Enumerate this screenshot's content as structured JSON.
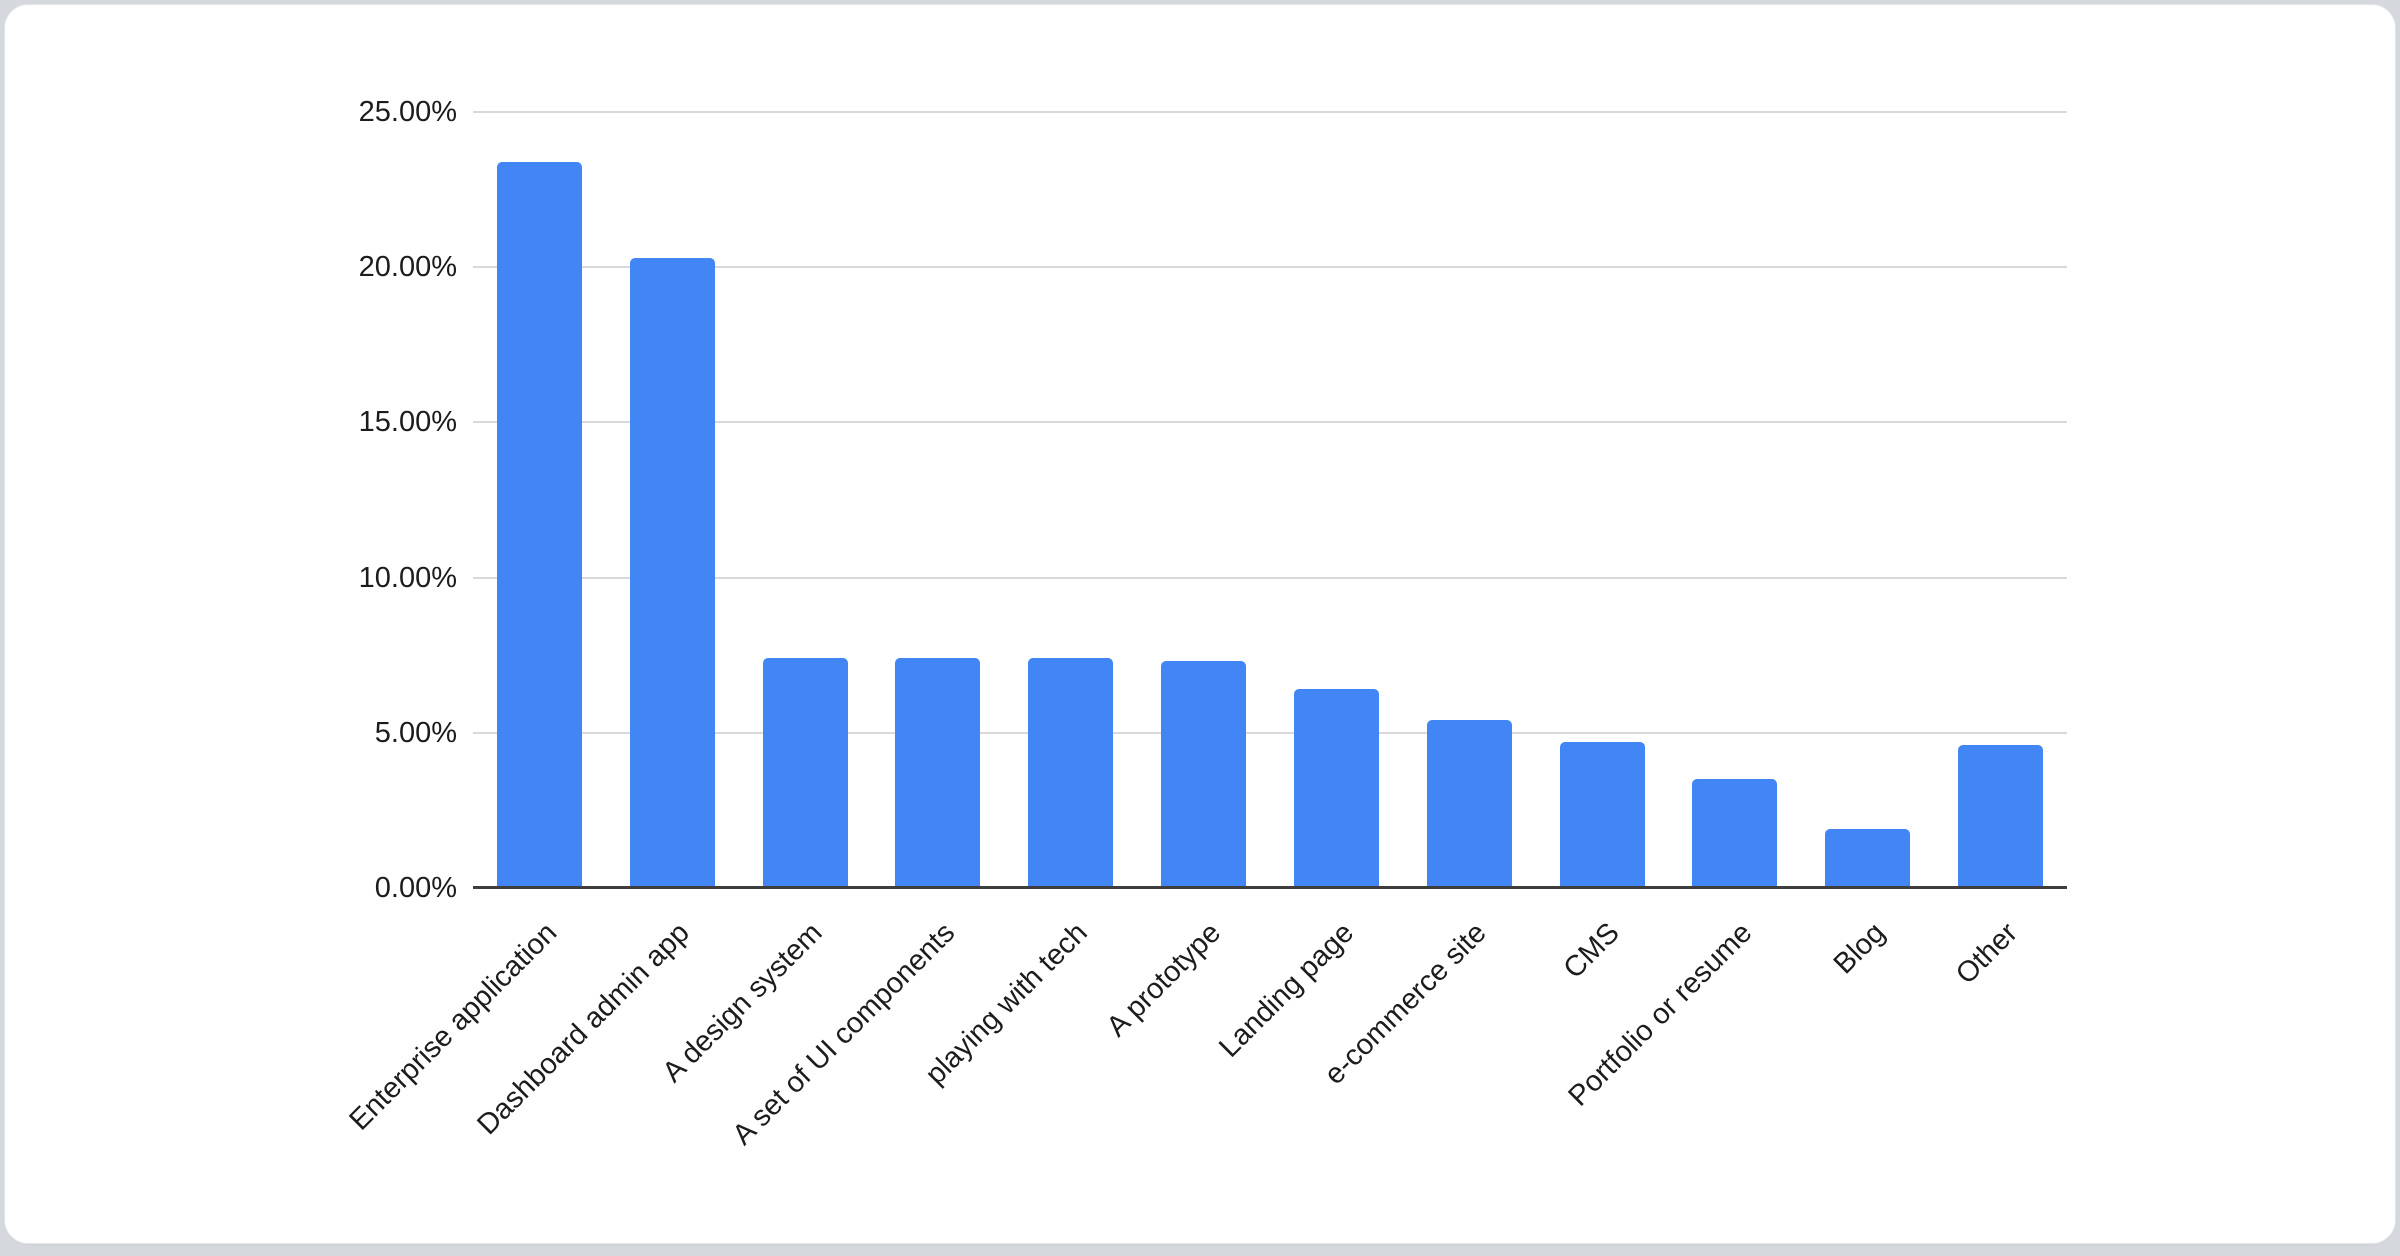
{
  "page": {
    "background_color": "#d5d9dd"
  },
  "card": {
    "background_color": "#ffffff",
    "border_color": "#e3e6e9"
  },
  "chart_data": {
    "type": "bar",
    "title": "",
    "xlabel": "",
    "ylabel": "",
    "legend": "none",
    "grid": true,
    "categories": [
      "Enterprise application",
      "Dashboard admin app",
      "A design system",
      "A set of UI components",
      "playing with tech",
      "A prototype",
      "Landing page",
      "e-commerce site",
      "CMS",
      "Portfolio or resume",
      "Blog",
      "Other"
    ],
    "values": [
      23.4,
      20.3,
      7.4,
      7.4,
      7.4,
      7.3,
      6.4,
      5.4,
      4.7,
      3.5,
      1.9,
      4.6
    ],
    "value_unit": "%",
    "ylim": [
      0,
      25
    ],
    "y_ticks": [
      {
        "value": 0,
        "label": "0.00%"
      },
      {
        "value": 5,
        "label": "5.00%"
      },
      {
        "value": 10,
        "label": "10.00%"
      },
      {
        "value": 15,
        "label": "15.00%"
      },
      {
        "value": 20,
        "label": "20.00%"
      },
      {
        "value": 25,
        "label": "25.00%"
      }
    ],
    "x_label_rotation_deg": -45,
    "bar_color": "#4285f4",
    "gridline_color": "#d9d9d9",
    "axis_line_color": "#3e3e3e",
    "label_color": "#1c1c1c"
  }
}
